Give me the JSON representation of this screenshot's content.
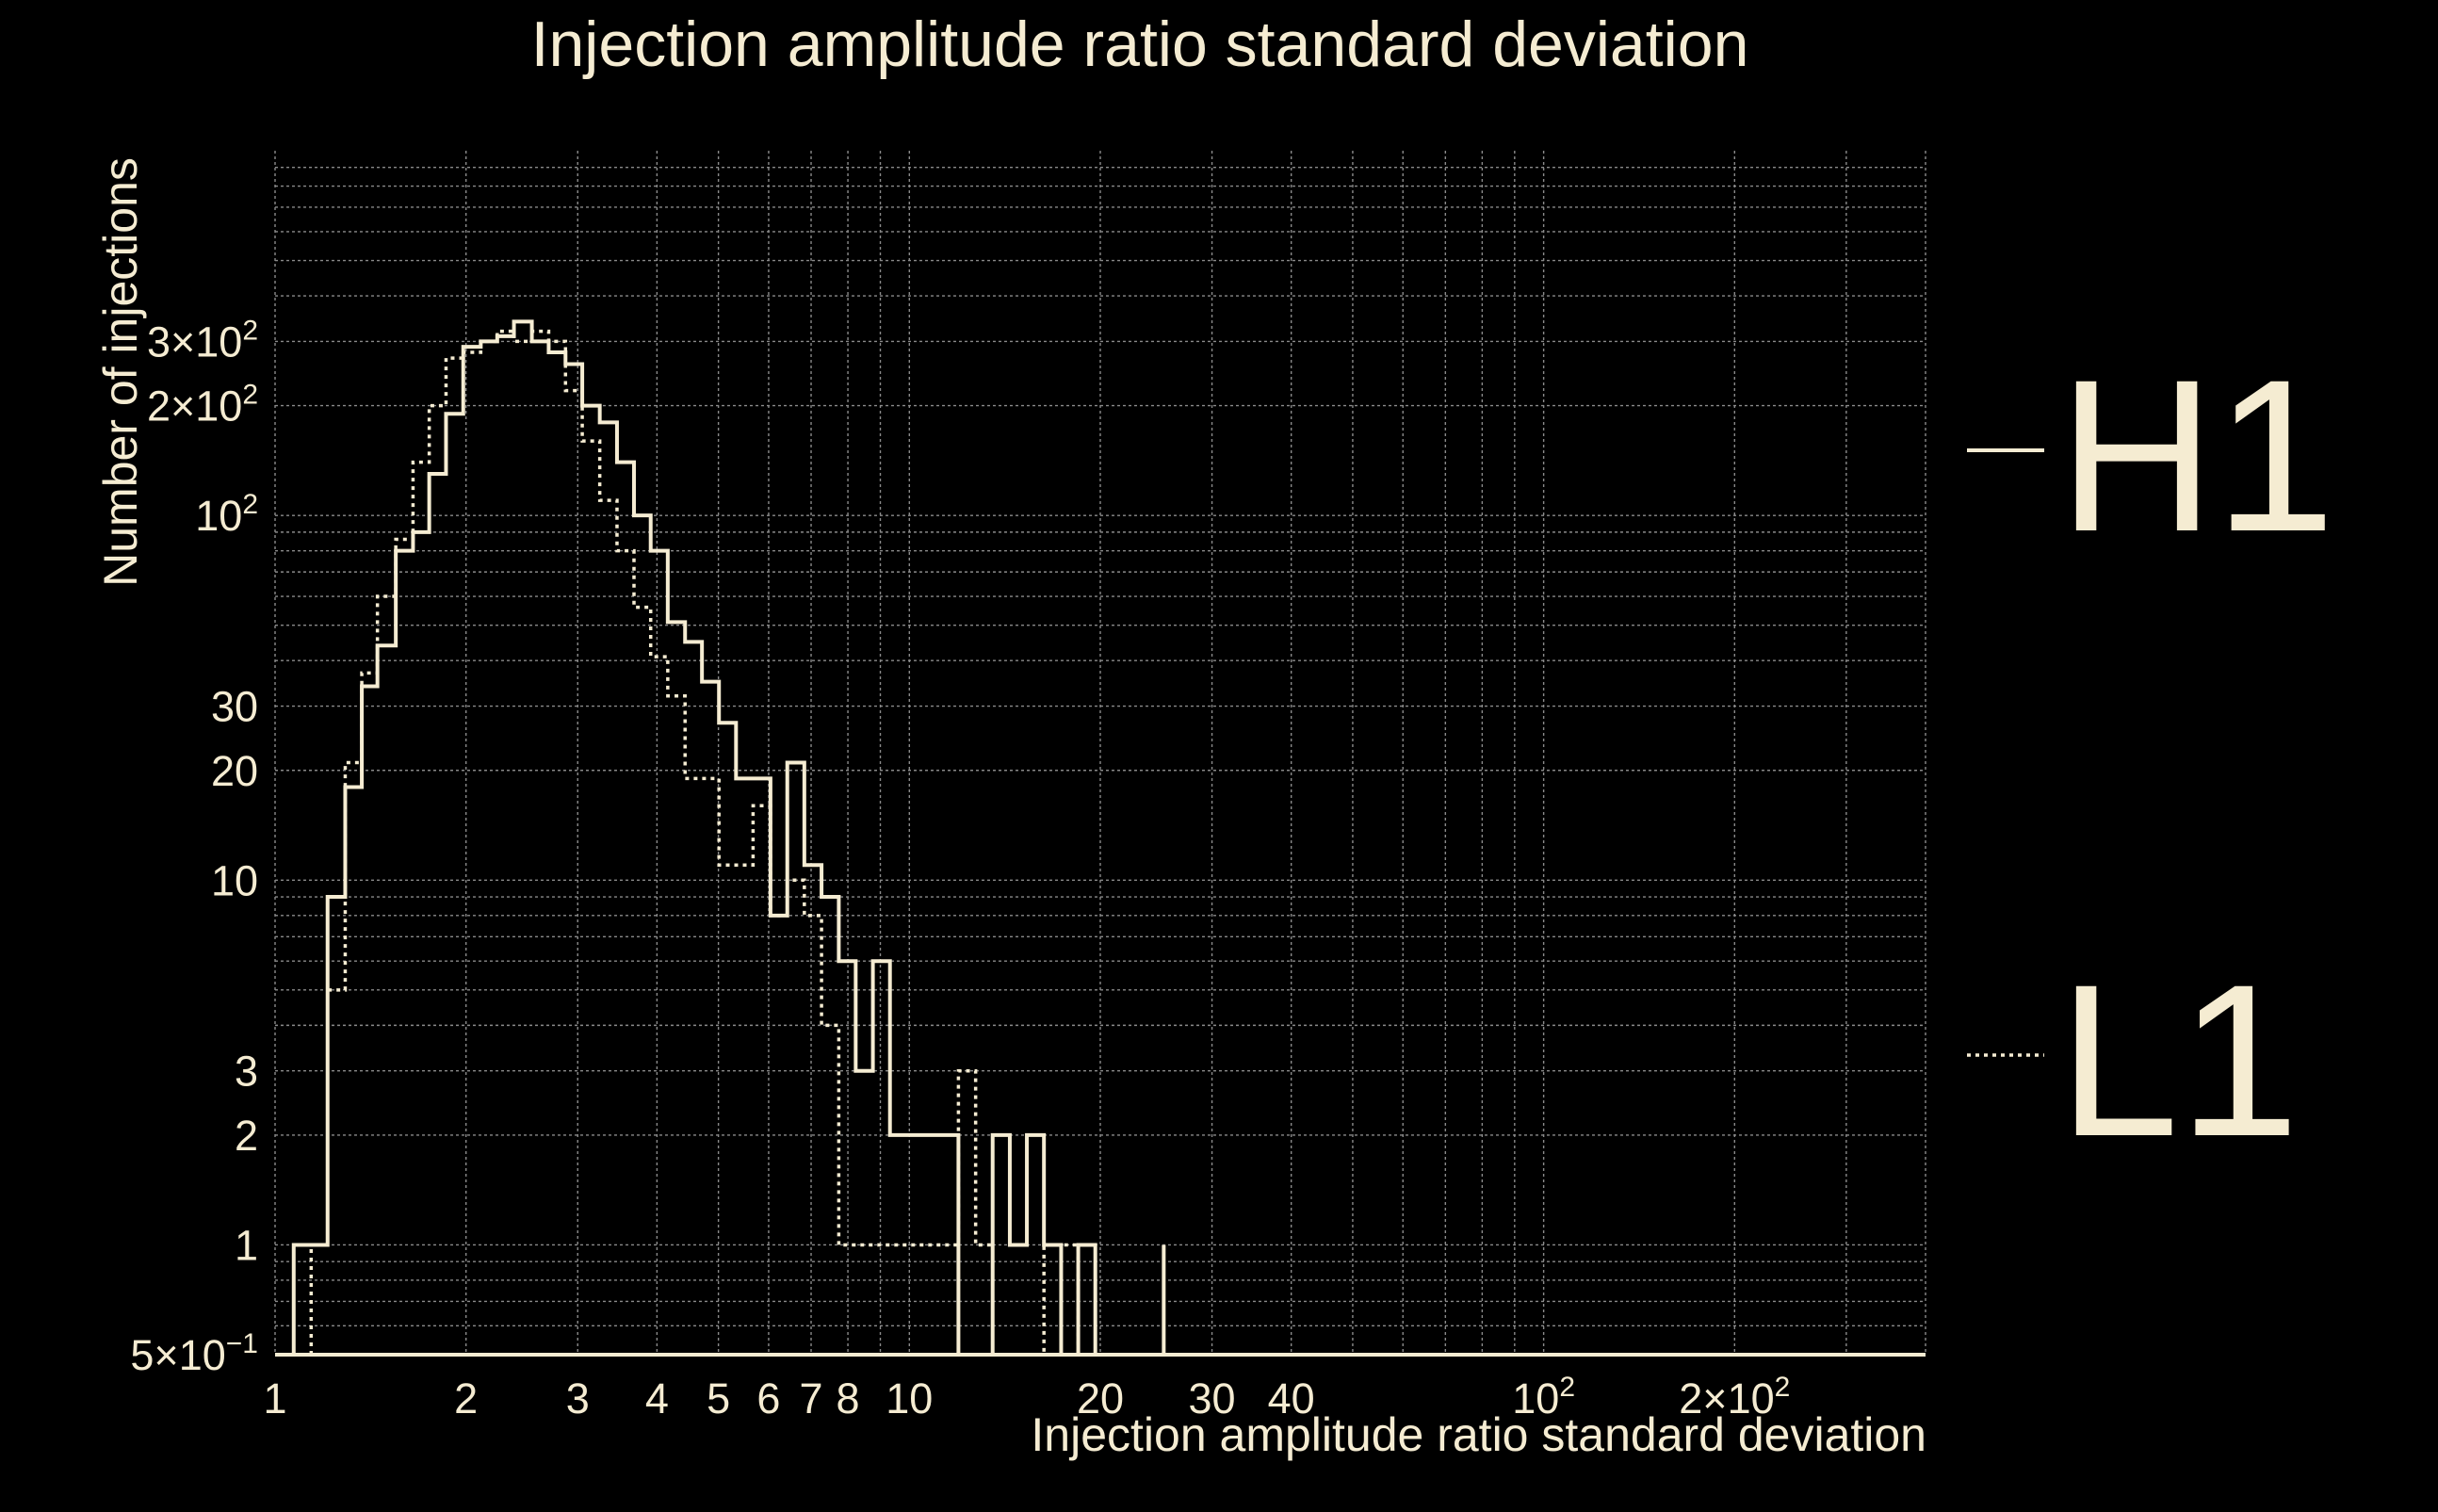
{
  "chart_data": {
    "type": "histogram-step",
    "title": "Injection amplitude ratio standard deviation",
    "xlabel": "Injection amplitude ratio standard deviation",
    "ylabel": "Number of injections",
    "x_scale": "log",
    "y_scale": "log",
    "xlim": [
      1,
      400
    ],
    "ylim": [
      0.5,
      1000
    ],
    "grid": true,
    "legend_placement": "right",
    "colors": {
      "background": "#000000",
      "foreground": "#f5ecd2",
      "grid": "#8a8a8a"
    },
    "x_ticks": [
      {
        "value": 1,
        "base": "1",
        "exp": ""
      },
      {
        "value": 2,
        "base": "2",
        "exp": ""
      },
      {
        "value": 3,
        "base": "3",
        "exp": ""
      },
      {
        "value": 4,
        "base": "4",
        "exp": ""
      },
      {
        "value": 5,
        "base": "5",
        "exp": ""
      },
      {
        "value": 6,
        "base": "6",
        "exp": ""
      },
      {
        "value": 7,
        "base": "7",
        "exp": ""
      },
      {
        "value": 8,
        "base": "8",
        "exp": ""
      },
      {
        "value": 10,
        "base": "10",
        "exp": ""
      },
      {
        "value": 20,
        "base": "20",
        "exp": ""
      },
      {
        "value": 30,
        "base": "30",
        "exp": ""
      },
      {
        "value": 40,
        "base": "40",
        "exp": ""
      },
      {
        "value": 100,
        "base": "10",
        "exp": "2"
      },
      {
        "value": 200,
        "base": "2×10",
        "exp": "2"
      }
    ],
    "y_ticks": [
      {
        "value": 0.5,
        "base": "5×10",
        "exp": "−1"
      },
      {
        "value": 1,
        "base": "1",
        "exp": ""
      },
      {
        "value": 2,
        "base": "2",
        "exp": ""
      },
      {
        "value": 3,
        "base": "3",
        "exp": ""
      },
      {
        "value": 10,
        "base": "10",
        "exp": ""
      },
      {
        "value": 20,
        "base": "20",
        "exp": ""
      },
      {
        "value": 30,
        "base": "30",
        "exp": ""
      },
      {
        "value": 100,
        "base": "10",
        "exp": "2"
      },
      {
        "value": 200,
        "base": "2×10",
        "exp": "2"
      },
      {
        "value": 300,
        "base": "3×10",
        "exp": "2"
      }
    ],
    "series": [
      {
        "name": "H1",
        "style": "solid",
        "edges": [
          1.07,
          1.14,
          1.21,
          1.29,
          1.37,
          1.45,
          1.55,
          1.65,
          1.75,
          1.86,
          1.98,
          2.11,
          2.24,
          2.38,
          2.54,
          2.7,
          2.87,
          3.05,
          3.25,
          3.46,
          3.68,
          3.91,
          4.16,
          4.43,
          4.71,
          5.01,
          5.33,
          5.67,
          6.04,
          6.42,
          6.83,
          7.27,
          7.74,
          8.23,
          8.76,
          9.32,
          9.92,
          10.56,
          11.23,
          11.95,
          12.72,
          13.53,
          14.4,
          15.32,
          16.3,
          17.35,
          18.46,
          19.64,
          20.9,
          22.24,
          23.67,
          25.18
        ],
        "values": [
          1,
          1,
          9,
          18,
          34,
          44,
          80,
          90,
          130,
          190,
          290,
          300,
          310,
          340,
          300,
          280,
          260,
          200,
          180,
          140,
          100,
          80,
          51,
          45,
          35,
          27,
          19,
          19,
          8,
          21,
          11,
          9,
          6,
          3,
          6,
          2,
          2,
          2,
          2,
          0.5,
          0.5,
          2,
          1,
          2,
          1,
          0.5,
          1,
          0.5,
          0.5,
          0.5,
          0.5,
          1
        ]
      },
      {
        "name": "L1",
        "style": "dotted",
        "edges": [
          1.14,
          1.21,
          1.29,
          1.37,
          1.45,
          1.55,
          1.65,
          1.75,
          1.86,
          1.98,
          2.11,
          2.24,
          2.38,
          2.54,
          2.7,
          2.87,
          3.05,
          3.25,
          3.46,
          3.68,
          3.91,
          4.16,
          4.43,
          4.71,
          5.01,
          5.33,
          5.67,
          6.04,
          6.42,
          6.83,
          7.27,
          7.74,
          8.23,
          8.76,
          9.32,
          9.92,
          10.56,
          11.23,
          11.95,
          12.72,
          13.53,
          14.4,
          15.32,
          16.3,
          17.35,
          18.46,
          19.64,
          20.9
        ],
        "values": [
          1,
          5,
          21,
          37,
          60,
          86,
          140,
          200,
          270,
          280,
          300,
          320,
          300,
          320,
          300,
          220,
          160,
          110,
          80,
          56,
          41,
          32,
          19,
          19,
          11,
          11,
          16,
          8,
          10,
          8,
          4,
          1,
          1,
          1,
          1,
          1,
          1,
          1,
          3,
          1,
          0.5,
          0.5,
          0.5,
          1,
          1,
          0.5,
          0.5,
          0.5
        ]
      }
    ],
    "legend": [
      {
        "label": "H1",
        "style": "solid"
      },
      {
        "label": "L1",
        "style": "dotted"
      }
    ]
  }
}
